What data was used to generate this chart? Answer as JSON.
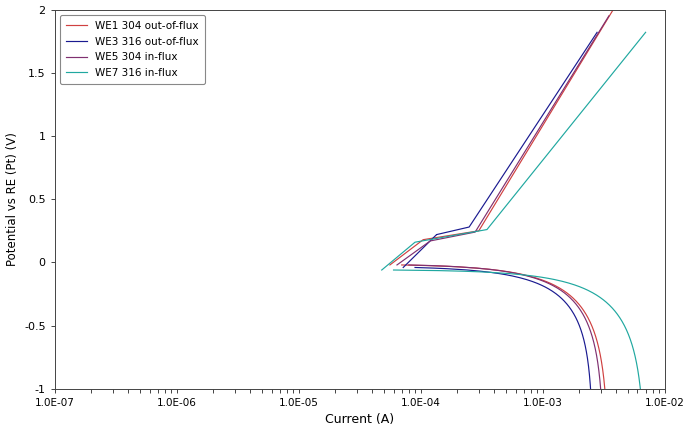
{
  "title": "",
  "xlabel": "Current (A)",
  "ylabel": "Potential vs RE (Pt) (V)",
  "xlim_log": [
    -7,
    -2
  ],
  "ylim": [
    -1,
    2
  ],
  "yticks": [
    -1,
    -0.5,
    0,
    0.5,
    1,
    1.5,
    2
  ],
  "legend_entries": [
    {
      "label": "WE1 304 out-of-flux",
      "color": "#d04040"
    },
    {
      "label": "WE3 316 out-of-flux",
      "color": "#1a1a90"
    },
    {
      "label": "WE5 304 in-flux",
      "color": "#803070"
    },
    {
      "label": "WE7 316 in-flux",
      "color": "#20a8a0"
    }
  ],
  "background_color": "#ffffff",
  "figure_width": 6.9,
  "figure_height": 4.32,
  "dpi": 100
}
